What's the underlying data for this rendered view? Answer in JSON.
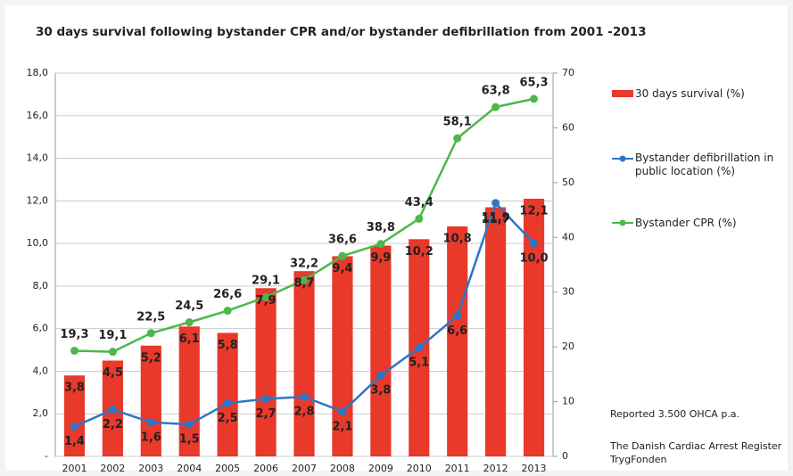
{
  "chart_data": {
    "type": "bar-line",
    "title": "30 days survival following bystander CPR and/or bystander defibrillation from 2001 -2013",
    "categories": [
      "2001",
      "2002",
      "2003",
      "2004",
      "2005",
      "2006",
      "2007",
      "2008",
      "2009",
      "2010",
      "2011",
      "2012",
      "2013"
    ],
    "series": [
      {
        "name": "30 days survival (%)",
        "color": "#e8392b",
        "kind": "bar",
        "values": [
          3.8,
          4.5,
          5.2,
          6.1,
          5.8,
          7.9,
          8.7,
          9.4,
          9.9,
          10.2,
          10.8,
          11.7,
          12.1
        ],
        "value_labels": [
          "3,8",
          "4,5",
          "5,2",
          "6,1",
          "5,8",
          "7,9",
          "8,7",
          "9,4",
          "9,9",
          "10,2",
          "10,8",
          "11,7",
          "12,1"
        ]
      },
      {
        "name": "Bystander defibrillation in public location (%)",
        "color": "#2e75c7",
        "kind": "line",
        "values": [
          1.4,
          2.2,
          1.6,
          1.5,
          2.5,
          2.7,
          2.8,
          2.1,
          3.8,
          5.1,
          6.6,
          11.9,
          10.0
        ],
        "value_labels": [
          "1,4",
          "2,2",
          "1,6",
          "1,5",
          "2,5",
          "2,7",
          "2,8",
          "2,1",
          "3,8",
          "5,1",
          "6,6",
          "11,9",
          "10,0"
        ]
      },
      {
        "name": "Bystander CPR (%)",
        "color": "#4cb849",
        "kind": "line",
        "axis": "y2",
        "values": [
          19.3,
          19.1,
          22.5,
          24.5,
          26.6,
          29.1,
          32.2,
          36.6,
          38.8,
          43.4,
          58.1,
          63.8,
          65.3
        ],
        "value_labels": [
          "19,3",
          "19,1",
          "22,5",
          "24,5",
          "26,6",
          "29,1",
          "32,2",
          "36,6",
          "38,8",
          "43,4",
          "58,1",
          "63,8",
          "65,3"
        ]
      }
    ],
    "ylim": [
      0,
      18
    ],
    "yticks": [
      {
        "value": 0,
        "label": "-"
      },
      {
        "value": 2,
        "label": "2,0"
      },
      {
        "value": 4,
        "label": "4,0"
      },
      {
        "value": 6,
        "label": "6,0"
      },
      {
        "value": 8,
        "label": "8,0"
      },
      {
        "value": 10,
        "label": "10,0"
      },
      {
        "value": 12,
        "label": "12,0"
      },
      {
        "value": 14,
        "label": "14,0"
      },
      {
        "value": 16,
        "label": "16,0"
      },
      {
        "value": 18,
        "label": "18,0"
      }
    ],
    "y2lim": [
      0,
      70
    ],
    "y2ticks": [
      0,
      10,
      20,
      30,
      40,
      50,
      60,
      70
    ],
    "grid": true,
    "annotations": [
      "Reported 3.500 OHCA p.a.",
      "The Danish Cardiac Arrest Register",
      "TrygFonden"
    ]
  }
}
